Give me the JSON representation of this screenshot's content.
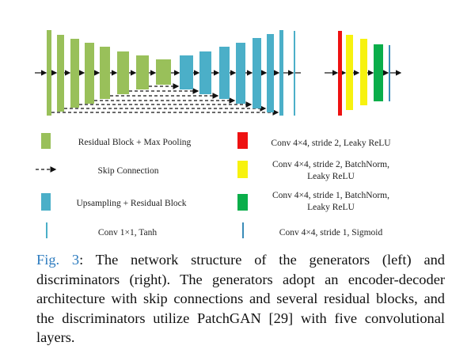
{
  "colors": {
    "green": "#99c05a",
    "cyan": "#4bafc8",
    "red": "#ee1111",
    "yellow": "#f7f20f",
    "dgreen": "#0aae4a",
    "arrow": "#111111",
    "caption_label": "#2c7bbf"
  },
  "legend": {
    "left": [
      {
        "id": "residual-maxpool",
        "swatch": "green-block",
        "label": "Residual Block + Max Pooling"
      },
      {
        "id": "skip",
        "swatch": "dashed-arrow",
        "label": "Skip Connection"
      },
      {
        "id": "upsampling",
        "swatch": "cyan-block",
        "label": "Upsampling + Residual Block"
      },
      {
        "id": "conv1x1",
        "swatch": "thin-cyan-line",
        "label": "Conv 1×1, Tanh"
      }
    ],
    "right": [
      {
        "id": "red",
        "swatch": "red-block",
        "line1": "Conv 4×4, stride 2, Leaky ReLU",
        "line2": ""
      },
      {
        "id": "yellow",
        "swatch": "yellow-block",
        "line1": "Conv 4×4, stride 2, BatchNorm,",
        "line2": "Leaky ReLU"
      },
      {
        "id": "dgreen",
        "swatch": "dgreen-block",
        "line1": "Conv 4×4, stride 1, BatchNorm,",
        "line2": "Leaky ReLU"
      },
      {
        "id": "blueline",
        "swatch": "thin-blue-line",
        "line1": "Conv 4×4, stride 1, Sigmoid",
        "line2": ""
      }
    ]
  },
  "caption": {
    "label": "Fig. 3",
    "text": ": The network structure of the generators (left) and discriminators (right). The generators adopt an encoder-decoder architecture with skip connections and several residual blocks, and the discriminators utilize PatchGAN [29] with five convolutional layers."
  }
}
